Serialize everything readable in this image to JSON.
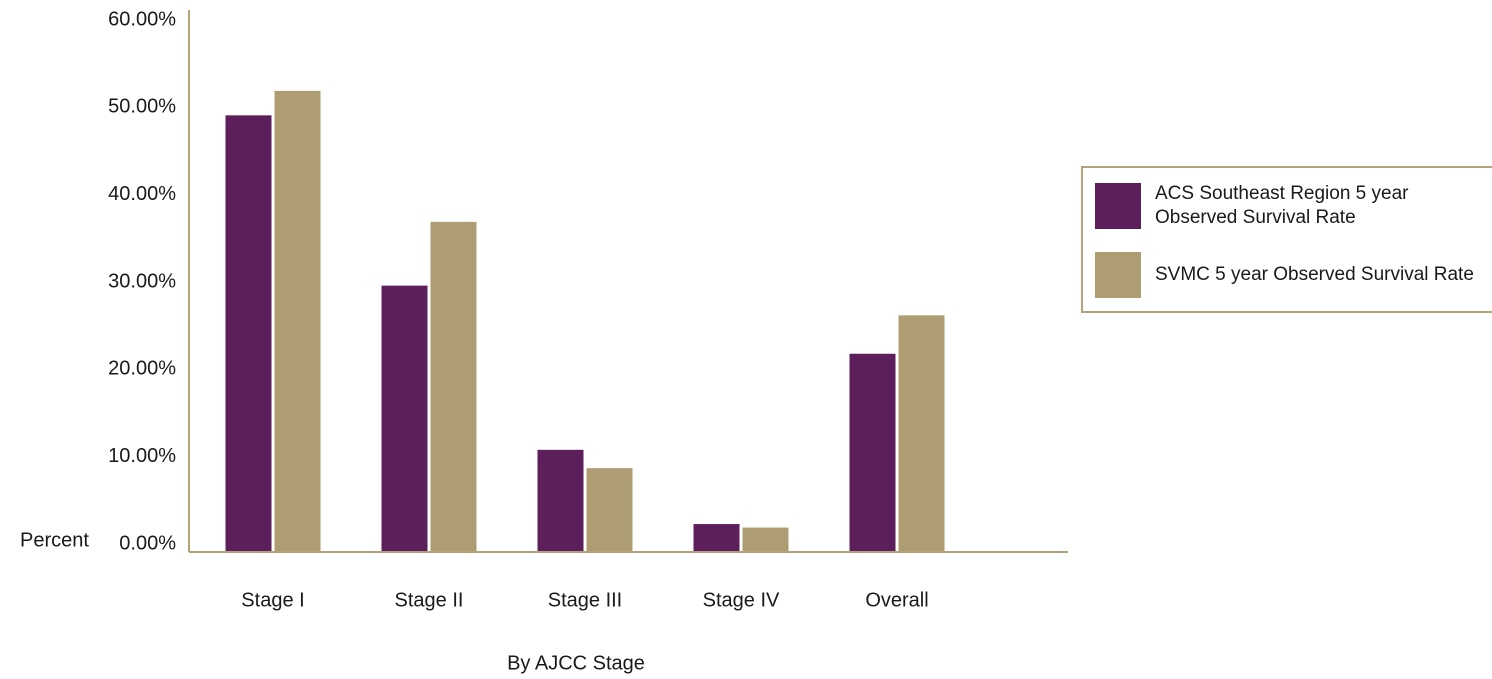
{
  "colors": {
    "acs": "#5c1f5c",
    "svmc": "#ae9c72",
    "axis": "#b5a27a"
  },
  "chart_data": {
    "type": "bar",
    "title": "",
    "xlabel": "By AJCC Stage",
    "ylabel": "Percent",
    "categories": [
      "Stage I",
      "Stage II",
      "Stage III",
      "Stage IV",
      "Overall"
    ],
    "ylim": [
      0,
      60
    ],
    "yticks": [
      "0.00%",
      "10.00%",
      "20.00%",
      "30.00%",
      "40.00%",
      "50.00%",
      "60.00%"
    ],
    "grid": false,
    "legend_position": "right",
    "series": [
      {
        "name": "ACS Southeast Region 5 year Observed Survival Rate",
        "color_key": "acs",
        "values": [
          50.0,
          30.5,
          11.7,
          3.2,
          22.7
        ]
      },
      {
        "name": "SVMC 5 year Observed Survival Rate",
        "color_key": "svmc",
        "values": [
          52.8,
          37.8,
          9.6,
          2.8,
          27.1
        ]
      }
    ]
  }
}
